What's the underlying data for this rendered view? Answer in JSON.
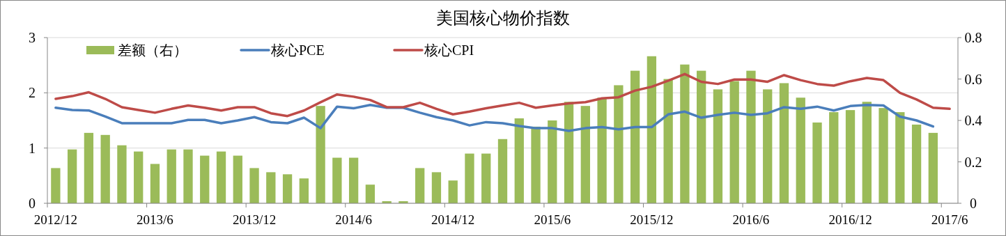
{
  "chart_data": {
    "type": "bar",
    "title": "美国核心物价指数",
    "categories": [
      "2012/12",
      null,
      null,
      null,
      null,
      null,
      "2013/6",
      null,
      null,
      null,
      null,
      null,
      "2013/12",
      null,
      null,
      null,
      null,
      null,
      "2014/6",
      null,
      null,
      null,
      null,
      null,
      "2014/12",
      null,
      null,
      null,
      null,
      null,
      "2015/6",
      null,
      null,
      null,
      null,
      null,
      "2015/12",
      null,
      null,
      null,
      null,
      null,
      "2016/6",
      null,
      null,
      null,
      null,
      null,
      "2016/12",
      null,
      null,
      null,
      null,
      null,
      "2017/6"
    ],
    "series": [
      {
        "name": "差额（右）",
        "axis": "y2",
        "color": "#9bbb59",
        "values": [
          0.17,
          0.26,
          0.34,
          0.33,
          0.28,
          0.25,
          0.19,
          0.26,
          0.26,
          0.23,
          0.25,
          0.23,
          0.17,
          0.15,
          0.14,
          0.12,
          0.47,
          0.22,
          0.22,
          0.09,
          0.01,
          0.01,
          0.17,
          0.15,
          0.11,
          0.24,
          0.24,
          0.31,
          0.41,
          0.37,
          0.4,
          0.49,
          0.47,
          0.51,
          0.57,
          0.64,
          0.71,
          0.6,
          0.67,
          0.64,
          0.55,
          0.59,
          0.64,
          0.55,
          0.58,
          0.51,
          0.39,
          0.44,
          0.45,
          0.49,
          0.46,
          0.44,
          0.38,
          0.34,
          null
        ]
      },
      {
        "name": "核心PCE",
        "type": "line",
        "color": "#4a7ebb",
        "values": [
          1.73,
          1.69,
          1.68,
          1.57,
          1.45,
          1.45,
          1.45,
          1.45,
          1.51,
          1.51,
          1.45,
          1.5,
          1.56,
          1.47,
          1.45,
          1.55,
          1.36,
          1.75,
          1.72,
          1.78,
          1.73,
          1.73,
          1.64,
          1.56,
          1.5,
          1.41,
          1.47,
          1.45,
          1.4,
          1.36,
          1.36,
          1.31,
          1.36,
          1.38,
          1.34,
          1.38,
          1.38,
          1.61,
          1.66,
          1.55,
          1.6,
          1.64,
          1.6,
          1.63,
          1.74,
          1.71,
          1.75,
          1.68,
          1.76,
          1.78,
          1.77,
          1.57,
          1.5,
          1.39,
          null
        ]
      },
      {
        "name": "核心CPI",
        "type": "line",
        "color": "#be4b48",
        "values": [
          1.89,
          1.94,
          2.01,
          1.89,
          1.74,
          1.69,
          1.64,
          1.71,
          1.77,
          1.73,
          1.68,
          1.74,
          1.74,
          1.63,
          1.58,
          1.68,
          1.83,
          1.97,
          1.93,
          1.87,
          1.74,
          1.74,
          1.82,
          1.71,
          1.61,
          1.66,
          1.72,
          1.77,
          1.82,
          1.73,
          1.77,
          1.81,
          1.83,
          1.9,
          1.92,
          2.04,
          2.11,
          2.22,
          2.34,
          2.2,
          2.16,
          2.24,
          2.24,
          2.2,
          2.32,
          2.23,
          2.16,
          2.13,
          2.21,
          2.27,
          2.23,
          2.0,
          1.88,
          1.73,
          1.71
        ]
      }
    ],
    "ylim": [
      0,
      3
    ],
    "yticks": [
      0,
      1,
      2,
      3
    ],
    "y2lim": [
      0,
      0.8
    ],
    "y2ticks": [
      0,
      0.2,
      0.4,
      0.6,
      0.8
    ],
    "grid": "y",
    "legend": "top left"
  }
}
